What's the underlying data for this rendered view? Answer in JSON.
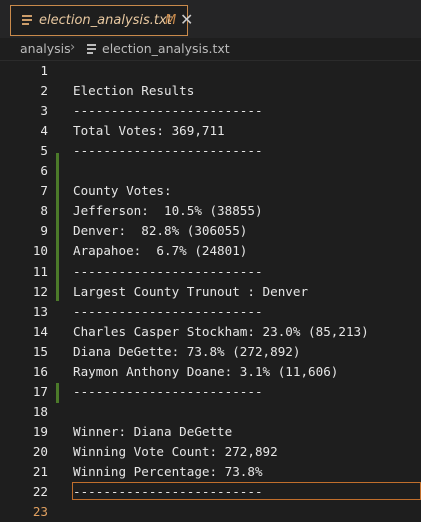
{
  "tab": {
    "filename": "election_analysis.txt",
    "status": "M",
    "close_glyph": "✕",
    "icon": "file-lines-icon"
  },
  "breadcrumb": {
    "folder": "analysis",
    "separator": "›",
    "file": "election_analysis.txt",
    "file_icon": "file-lines-icon"
  },
  "editor": {
    "current_line": 23,
    "lines": [
      {
        "num": "1",
        "text": ""
      },
      {
        "num": "2",
        "text": "Election Results"
      },
      {
        "num": "3",
        "text": "-------------------------"
      },
      {
        "num": "4",
        "text": "Total Votes: 369,711"
      },
      {
        "num": "5",
        "text": "-------------------------"
      },
      {
        "num": "6",
        "text": ""
      },
      {
        "num": "7",
        "text": "County Votes:"
      },
      {
        "num": "8",
        "text": "Jefferson:  10.5% (38855)"
      },
      {
        "num": "9",
        "text": "Denver:  82.8% (306055)"
      },
      {
        "num": "10",
        "text": "Arapahoe:  6.7% (24801)"
      },
      {
        "num": "11",
        "text": "-------------------------"
      },
      {
        "num": "12",
        "text": "Largest County Trunout : Denver"
      },
      {
        "num": "13",
        "text": "-------------------------"
      },
      {
        "num": "14",
        "text": "Charles Casper Stockham: 23.0% (85,213)"
      },
      {
        "num": "15",
        "text": "Diana DeGette: 73.8% (272,892)"
      },
      {
        "num": "16",
        "text": "Raymon Anthony Doane: 3.1% (11,606)"
      },
      {
        "num": "17",
        "text": "-------------------------"
      },
      {
        "num": "18",
        "text": ""
      },
      {
        "num": "19",
        "text": "Winner: Diana DeGette"
      },
      {
        "num": "20",
        "text": "Winning Vote Count: 272,892"
      },
      {
        "num": "21",
        "text": "Winning Percentage: 73.8%"
      },
      {
        "num": "22",
        "text": "-------------------------"
      },
      {
        "num": "23",
        "text": ""
      }
    ]
  },
  "colors": {
    "background": "#1e1e1e",
    "tab_border": "#c98a4b",
    "modified_lines": "#4c7a2a",
    "cursor_border": "#c06e2c"
  }
}
